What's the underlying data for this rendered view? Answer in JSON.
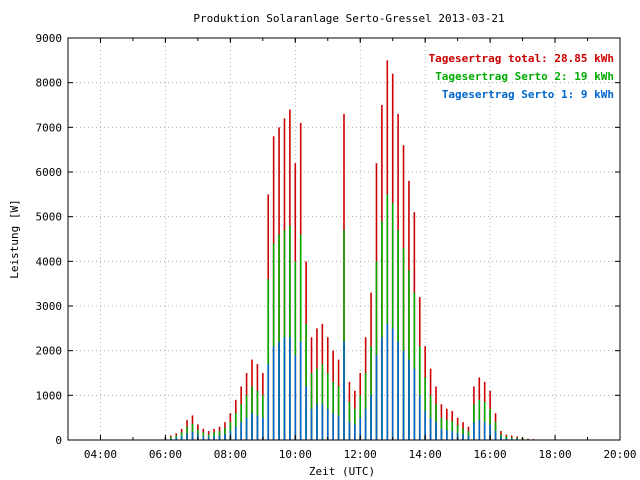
{
  "chart_data": {
    "type": "bar",
    "title": "Produktion Solaranlage Serto-Gressel 2013-03-21",
    "xlabel": "Zeit (UTC)",
    "ylabel": "Leistung [W]",
    "x_ticks": [
      "04:00",
      "06:00",
      "08:00",
      "10:00",
      "12:00",
      "14:00",
      "16:00",
      "18:00",
      "20:00"
    ],
    "y_ticks": [
      "0",
      "1000",
      "2000",
      "3000",
      "4000",
      "5000",
      "6000",
      "7000",
      "8000",
      "9000"
    ],
    "xlim_hours": [
      3,
      20
    ],
    "ylim": [
      0,
      9000
    ],
    "grid": true,
    "legend_position": "top-right",
    "series": [
      {
        "name": "Tagesertrag total: 28.85 kWh",
        "color": "#cc0000",
        "x": [
          "06:00",
          "06:10",
          "06:20",
          "06:30",
          "06:40",
          "06:50",
          "07:00",
          "07:10",
          "07:20",
          "07:30",
          "07:40",
          "07:50",
          "08:00",
          "08:10",
          "08:20",
          "08:30",
          "08:40",
          "08:50",
          "09:00",
          "09:10",
          "09:20",
          "09:30",
          "09:40",
          "09:50",
          "10:00",
          "10:10",
          "10:20",
          "10:30",
          "10:40",
          "10:50",
          "11:00",
          "11:10",
          "11:20",
          "11:30",
          "11:40",
          "11:50",
          "12:00",
          "12:10",
          "12:20",
          "12:30",
          "12:40",
          "12:50",
          "13:00",
          "13:10",
          "13:20",
          "13:30",
          "13:40",
          "13:50",
          "14:00",
          "14:10",
          "14:20",
          "14:30",
          "14:40",
          "14:50",
          "15:00",
          "15:10",
          "15:20",
          "15:30",
          "15:40",
          "15:50",
          "16:00",
          "16:10",
          "16:20",
          "16:30",
          "16:40",
          "16:50",
          "17:00",
          "17:10",
          "17:20",
          "17:30",
          "17:40"
        ],
        "values": [
          50,
          100,
          150,
          250,
          450,
          550,
          350,
          250,
          200,
          250,
          300,
          400,
          600,
          900,
          1200,
          1500,
          1800,
          1700,
          1500,
          5500,
          6800,
          7000,
          7200,
          7400,
          6200,
          7100,
          4000,
          2300,
          2500,
          2600,
          2300,
          2000,
          1800,
          7300,
          1300,
          1100,
          1500,
          2300,
          3300,
          6200,
          7500,
          8500,
          8200,
          7300,
          6600,
          5800,
          5100,
          3200,
          2100,
          1600,
          1200,
          800,
          700,
          650,
          500,
          400,
          300,
          1200,
          1400,
          1300,
          1100,
          600,
          200,
          120,
          100,
          80,
          50,
          30,
          20,
          10,
          5
        ]
      },
      {
        "name": "Tagesertrag Serto 2: 19 kWh",
        "color": "#00aa00",
        "x": [
          "06:00",
          "06:10",
          "06:20",
          "06:30",
          "06:40",
          "06:50",
          "07:00",
          "07:10",
          "07:20",
          "07:30",
          "07:40",
          "07:50",
          "08:00",
          "08:10",
          "08:20",
          "08:30",
          "08:40",
          "08:50",
          "09:00",
          "09:10",
          "09:20",
          "09:30",
          "09:40",
          "09:50",
          "10:00",
          "10:10",
          "10:20",
          "10:30",
          "10:40",
          "10:50",
          "11:00",
          "11:10",
          "11:20",
          "11:30",
          "11:40",
          "11:50",
          "12:00",
          "12:10",
          "12:20",
          "12:30",
          "12:40",
          "12:50",
          "13:00",
          "13:10",
          "13:20",
          "13:30",
          "13:40",
          "13:50",
          "14:00",
          "14:10",
          "14:20",
          "14:30",
          "14:40",
          "14:50",
          "15:00",
          "15:10",
          "15:20",
          "15:30",
          "15:40",
          "15:50",
          "16:00",
          "16:10",
          "16:20",
          "16:30",
          "16:40",
          "16:50",
          "17:00",
          "17:10",
          "17:20",
          "17:30",
          "17:40"
        ],
        "values": [
          30,
          70,
          100,
          170,
          300,
          360,
          230,
          170,
          130,
          170,
          200,
          270,
          400,
          600,
          800,
          1000,
          1200,
          1100,
          1000,
          3600,
          4400,
          4600,
          4700,
          4800,
          4000,
          4600,
          2600,
          1500,
          1600,
          1700,
          1500,
          1300,
          1200,
          4700,
          850,
          700,
          1000,
          1500,
          2100,
          4000,
          4900,
          5500,
          5300,
          4700,
          4300,
          3800,
          3300,
          2100,
          1400,
          1000,
          800,
          500,
          450,
          420,
          330,
          260,
          200,
          800,
          900,
          850,
          700,
          400,
          130,
          80,
          60,
          50,
          30,
          20,
          10,
          5,
          2
        ]
      },
      {
        "name": "Tagesertrag Serto 1: 9 kWh",
        "color": "#0066cc",
        "x": [
          "06:00",
          "06:10",
          "06:20",
          "06:30",
          "06:40",
          "06:50",
          "07:00",
          "07:10",
          "07:20",
          "07:30",
          "07:40",
          "07:50",
          "08:00",
          "08:10",
          "08:20",
          "08:30",
          "08:40",
          "08:50",
          "09:00",
          "09:10",
          "09:20",
          "09:30",
          "09:40",
          "09:50",
          "10:00",
          "10:10",
          "10:20",
          "10:30",
          "10:40",
          "10:50",
          "11:00",
          "11:10",
          "11:20",
          "11:30",
          "11:40",
          "11:50",
          "12:00",
          "12:10",
          "12:20",
          "12:30",
          "12:40",
          "12:50",
          "13:00",
          "13:10",
          "13:20",
          "13:30",
          "13:40",
          "13:50",
          "14:00",
          "14:10",
          "14:20",
          "14:30",
          "14:40",
          "14:50",
          "15:00",
          "15:10",
          "15:20",
          "15:30",
          "15:40",
          "15:50",
          "16:00",
          "16:10",
          "16:20",
          "16:30",
          "16:40",
          "16:50",
          "17:00",
          "17:10",
          "17:20",
          "17:30",
          "17:40"
        ],
        "values": [
          15,
          30,
          50,
          80,
          150,
          180,
          120,
          80,
          70,
          80,
          100,
          130,
          200,
          300,
          400,
          500,
          600,
          550,
          500,
          1700,
          2100,
          2200,
          2300,
          2300,
          1900,
          2200,
          1200,
          700,
          800,
          800,
          700,
          600,
          550,
          2200,
          400,
          350,
          500,
          700,
          1000,
          1900,
          2300,
          2600,
          2500,
          2200,
          2000,
          1800,
          1600,
          1000,
          650,
          500,
          400,
          250,
          220,
          200,
          160,
          130,
          100,
          400,
          450,
          400,
          350,
          200,
          70,
          40,
          30,
          25,
          15,
          10,
          5,
          3,
          1
        ]
      }
    ]
  }
}
